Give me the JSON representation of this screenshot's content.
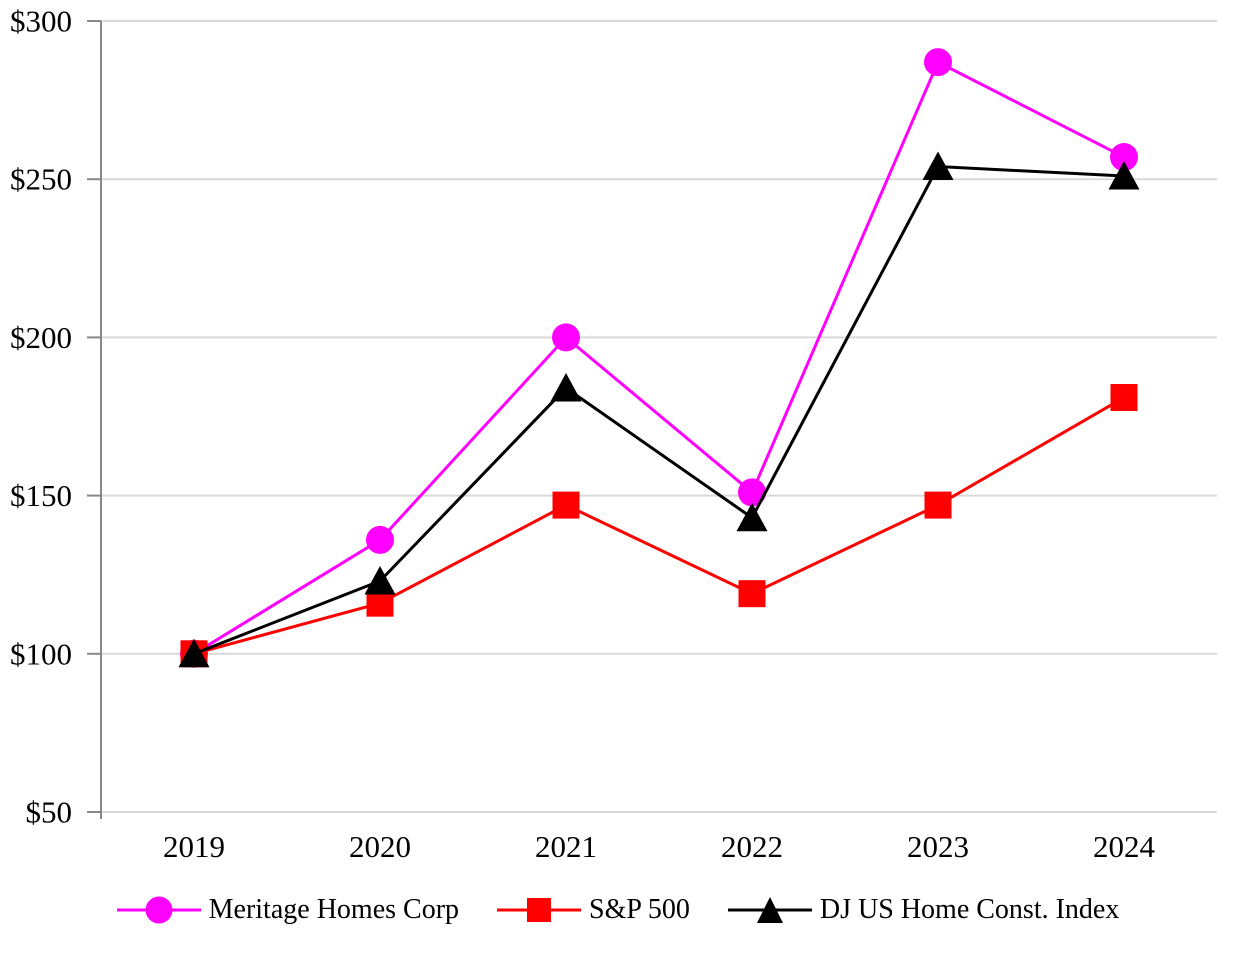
{
  "chart_data": {
    "type": "line",
    "title": "",
    "xlabel": "",
    "ylabel": "",
    "x_categories": [
      "2019",
      "2020",
      "2021",
      "2022",
      "2023",
      "2024"
    ],
    "y_ticks": [
      50,
      100,
      150,
      200,
      250,
      300
    ],
    "y_tick_labels": [
      "$50",
      "$100",
      "$150",
      "$200",
      "$250",
      "$300"
    ],
    "ylim": [
      50,
      300
    ],
    "grid": true,
    "legend_position": "bottom",
    "series": [
      {
        "name": "Meritage Homes Corp",
        "marker": "circle",
        "color": "#FF00FF",
        "values": [
          100,
          136,
          200,
          151,
          287,
          257
        ]
      },
      {
        "name": "S&P 500",
        "marker": "square",
        "color": "#FF0000",
        "values": [
          100,
          116,
          147,
          119,
          147,
          181
        ]
      },
      {
        "name": "DJ US Home Const. Index",
        "marker": "triangle",
        "color": "#000000",
        "values": [
          100,
          123,
          184,
          143,
          254,
          251
        ]
      }
    ],
    "style": {
      "grid_color": "#D9D9D9",
      "axis_color": "#878787",
      "text_color": "#000000",
      "background": "#FFFFFF"
    }
  }
}
